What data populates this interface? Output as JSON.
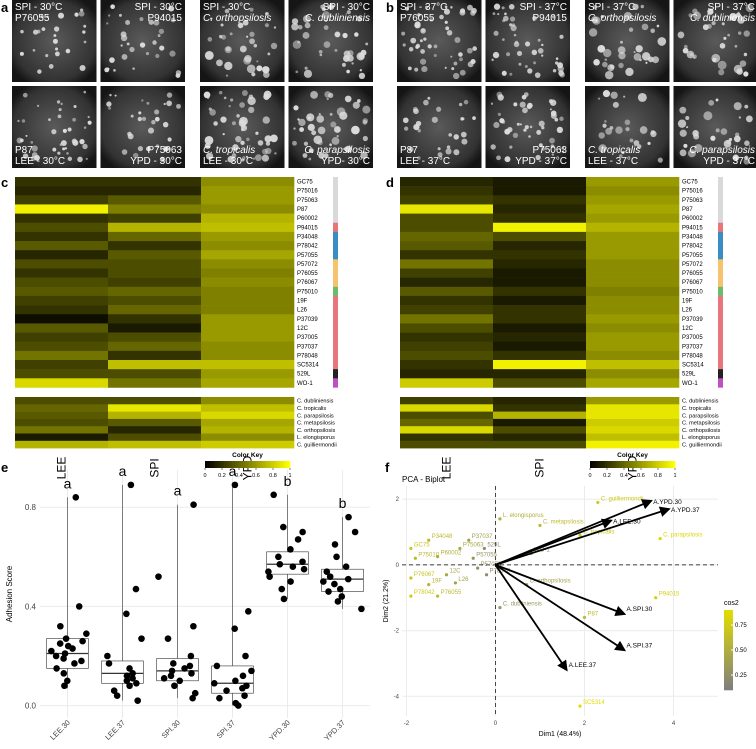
{
  "photo_panels": [
    {
      "panel": "a",
      "plates": [
        {
          "italic": false,
          "quadrants": [
            [
              "SPI - 30°C",
              "P76055"
            ],
            [
              "SPI - 30°C",
              "P94015"
            ],
            [
              "P87",
              "LEE - 30°C"
            ],
            [
              "P75063",
              "YPD - 30°C"
            ]
          ]
        },
        {
          "italic": true,
          "quadrants": [
            [
              "SPI - 30°C",
              "C. orthopsilosis"
            ],
            [
              "SPI - 30°C",
              "C. dubliniensis"
            ],
            [
              "C. tropicalis",
              "LEE - 30°C"
            ],
            [
              "C. parapsilosis",
              "YPD- 30°C"
            ]
          ]
        }
      ]
    },
    {
      "panel": "b",
      "plates": [
        {
          "italic": false,
          "quadrants": [
            [
              "SPI - 37°C",
              "P76055"
            ],
            [
              "SPI - 37°C",
              "P94015"
            ],
            [
              "P87",
              "LEE - 37°C"
            ],
            [
              "P75063",
              "YPD - 37°C"
            ]
          ]
        },
        {
          "italic": true,
          "quadrants": [
            [
              "SPI - 37°C",
              "C. orthopsilosis"
            ],
            [
              "SPI - 37°C",
              "C. dubliniensis"
            ],
            [
              "C. tropicalis",
              "LEE - 37°C"
            ],
            [
              "C. parapsilosis",
              "YPD - 37°C"
            ]
          ]
        }
      ]
    }
  ],
  "chart_data": [
    {
      "type": "heatmap",
      "panel": "c",
      "columns": [
        "LEE",
        "SPI",
        "YPD"
      ],
      "rows": [
        "GC75",
        "P75016",
        "P75063",
        "P87",
        "P60002",
        "P94015",
        "P34048",
        "P78042",
        "P57055",
        "P57072",
        "P76055",
        "P76067",
        "P75010",
        "19F",
        "L26",
        "P37039",
        "12C",
        "P37005",
        "P37037",
        "P78048",
        "SC5314",
        "529L",
        "WO-1"
      ],
      "row_colors": [
        "#d9d9d9",
        "#d9d9d9",
        "#d9d9d9",
        "#d9d9d9",
        "#d9d9d9",
        "#e8747c",
        "#3a8dc4",
        "#3a8dc4",
        "#3a8dc4",
        "#f4c36b",
        "#f4c36b",
        "#f4c36b",
        "#6dbb6d",
        "#e8747c",
        "#e8747c",
        "#e8747c",
        "#e8747c",
        "#e8747c",
        "#e8747c",
        "#e8747c",
        "#e8747c",
        "#222222",
        "#c04fc0"
      ],
      "values": [
        [
          0.2,
          0.2,
          0.55
        ],
        [
          0.15,
          0.15,
          0.6
        ],
        [
          0.25,
          0.35,
          0.6
        ],
        [
          0.95,
          0.5,
          0.55
        ],
        [
          0.2,
          0.25,
          0.7
        ],
        [
          0.3,
          0.7,
          0.75
        ],
        [
          0.2,
          0.4,
          0.6
        ],
        [
          0.35,
          0.2,
          0.55
        ],
        [
          0.15,
          0.35,
          0.65
        ],
        [
          0.3,
          0.3,
          0.55
        ],
        [
          0.2,
          0.3,
          0.5
        ],
        [
          0.3,
          0.25,
          0.55
        ],
        [
          0.35,
          0.4,
          0.5
        ],
        [
          0.25,
          0.3,
          0.5
        ],
        [
          0.2,
          0.4,
          0.5
        ],
        [
          0.05,
          0.2,
          0.6
        ],
        [
          0.35,
          0.1,
          0.6
        ],
        [
          0.25,
          0.3,
          0.6
        ],
        [
          0.3,
          0.4,
          0.55
        ],
        [
          0.45,
          0.2,
          0.55
        ],
        [
          0.25,
          0.75,
          0.75
        ],
        [
          0.3,
          0.3,
          0.6
        ],
        [
          0.85,
          0.45,
          0.65
        ]
      ],
      "rows2": [
        "C. dubliniensis",
        "C. tropicalis",
        "C. parapsilosis",
        "C. metapsilosis",
        "C. orthopsilosis",
        "L. elongisporus",
        "C. guilliermondii"
      ],
      "values2": [
        [
          0.3,
          0.3,
          0.55
        ],
        [
          0.4,
          0.9,
          0.75
        ],
        [
          0.35,
          0.7,
          0.85
        ],
        [
          0.3,
          0.35,
          0.65
        ],
        [
          0.45,
          0.15,
          0.7
        ],
        [
          0.1,
          0.3,
          0.55
        ],
        [
          0.7,
          0.75,
          0.8
        ]
      ],
      "colormap": [
        "#000000",
        "#ffff00"
      ],
      "colorbar_title": "Color Key",
      "colorbar_ticks": [
        0,
        0.2,
        0.4,
        0.6,
        0.8,
        1
      ]
    },
    {
      "type": "heatmap",
      "panel": "d",
      "columns": [
        "LEE",
        "SPI",
        "YPD"
      ],
      "rows": [
        "GC75",
        "P75016",
        "P75063",
        "P87",
        "P60002",
        "P94015",
        "P34048",
        "P78042",
        "P57055",
        "P57072",
        "P76055",
        "P76067",
        "P75010",
        "19F",
        "L26",
        "P37039",
        "12C",
        "P37005",
        "P37037",
        "P78048",
        "SC5314",
        "529L",
        "WO-1"
      ],
      "row_colors": [
        "#d9d9d9",
        "#d9d9d9",
        "#d9d9d9",
        "#d9d9d9",
        "#d9d9d9",
        "#e8747c",
        "#3a8dc4",
        "#3a8dc4",
        "#3a8dc4",
        "#f4c36b",
        "#f4c36b",
        "#f4c36b",
        "#6dbb6d",
        "#e8747c",
        "#e8747c",
        "#e8747c",
        "#e8747c",
        "#e8747c",
        "#e8747c",
        "#e8747c",
        "#e8747c",
        "#222222",
        "#c04fc0"
      ],
      "values": [
        [
          0.15,
          0.1,
          0.6
        ],
        [
          0.2,
          0.1,
          0.55
        ],
        [
          0.25,
          0.2,
          0.6
        ],
        [
          0.9,
          0.15,
          0.65
        ],
        [
          0.3,
          0.2,
          0.6
        ],
        [
          0.3,
          0.95,
          0.7
        ],
        [
          0.4,
          0.3,
          0.6
        ],
        [
          0.35,
          0.15,
          0.6
        ],
        [
          0.2,
          0.2,
          0.6
        ],
        [
          0.45,
          0.15,
          0.55
        ],
        [
          0.25,
          0.1,
          0.55
        ],
        [
          0.15,
          0.1,
          0.55
        ],
        [
          0.35,
          0.2,
          0.5
        ],
        [
          0.2,
          0.1,
          0.55
        ],
        [
          0.25,
          0.2,
          0.55
        ],
        [
          0.45,
          0.2,
          0.6
        ],
        [
          0.3,
          0.1,
          0.55
        ],
        [
          0.2,
          0.15,
          0.6
        ],
        [
          0.25,
          0.1,
          0.6
        ],
        [
          0.3,
          0.2,
          0.55
        ],
        [
          0.2,
          0.95,
          0.75
        ],
        [
          0.15,
          0.15,
          0.55
        ],
        [
          0.8,
          0.3,
          0.65
        ]
      ],
      "rows2": [
        "C. dubliniensis",
        "C. tropicalis",
        "C. parapsilosis",
        "C. metapsilosis",
        "C. orthopsilosis",
        "L. elongisporus",
        "C. guilliermondii"
      ],
      "values2": [
        [
          0.25,
          0.15,
          0.6
        ],
        [
          0.85,
          0.2,
          0.9
        ],
        [
          0.3,
          0.7,
          0.9
        ],
        [
          0.4,
          0.1,
          0.8
        ],
        [
          0.85,
          0.3,
          0.85
        ],
        [
          0.2,
          0.15,
          0.75
        ],
        [
          0.3,
          0.3,
          0.95
        ]
      ],
      "colormap": [
        "#000000",
        "#ffff00"
      ],
      "colorbar_title": "Color Key",
      "colorbar_ticks": [
        0,
        0.2,
        0.4,
        0.6,
        0.8,
        1
      ]
    },
    {
      "type": "box",
      "panel": "e",
      "ylabel": "Adhesion Score",
      "categories": [
        "LEE.30",
        "LEE.37",
        "SPI.30",
        "SPI.37",
        "YPD.30",
        "YPD.37"
      ],
      "letters": [
        "a",
        "a",
        "a",
        "a",
        "b",
        "b"
      ],
      "q1": [
        0.15,
        0.09,
        0.1,
        0.05,
        0.53,
        0.46
      ],
      "median": [
        0.21,
        0.13,
        0.14,
        0.09,
        0.57,
        0.51
      ],
      "q3": [
        0.27,
        0.18,
        0.19,
        0.16,
        0.62,
        0.55
      ],
      "whisker_low": [
        0.07,
        0.02,
        0.03,
        0.0,
        0.43,
        0.39
      ],
      "whisker_high": [
        0.84,
        0.89,
        0.81,
        0.89,
        0.85,
        0.76
      ],
      "points": [
        [
          0.84,
          0.4,
          0.32,
          0.29,
          0.27,
          0.25,
          0.23,
          0.22,
          0.21,
          0.2,
          0.19,
          0.17,
          0.15,
          0.13,
          0.1,
          0.08,
          0.26,
          0.24,
          0.18
        ],
        [
          0.89,
          0.47,
          0.37,
          0.27,
          0.2,
          0.17,
          0.15,
          0.13,
          0.12,
          0.11,
          0.1,
          0.09,
          0.08,
          0.06,
          0.04,
          0.02
        ],
        [
          0.81,
          0.52,
          0.32,
          0.27,
          0.2,
          0.17,
          0.16,
          0.15,
          0.14,
          0.13,
          0.12,
          0.11,
          0.1,
          0.08,
          0.05,
          0.03
        ],
        [
          0.89,
          0.38,
          0.31,
          0.2,
          0.16,
          0.14,
          0.12,
          0.1,
          0.09,
          0.08,
          0.07,
          0.06,
          0.04,
          0.03,
          0.01,
          0.0
        ],
        [
          0.85,
          0.72,
          0.7,
          0.67,
          0.63,
          0.6,
          0.58,
          0.57,
          0.56,
          0.55,
          0.54,
          0.52,
          0.5,
          0.47,
          0.43
        ],
        [
          0.76,
          0.7,
          0.65,
          0.6,
          0.56,
          0.54,
          0.52,
          0.51,
          0.5,
          0.49,
          0.47,
          0.46,
          0.44,
          0.42,
          0.39
        ]
      ],
      "ylim": [
        -0.05,
        0.95
      ],
      "yticks": [
        {
          "value": 0,
          "label": "0.0"
        },
        {
          "value": 0.4,
          "label": "0.4"
        },
        {
          "value": 0.8,
          "label": "0.8"
        }
      ],
      "grid": true
    },
    {
      "type": "biplot",
      "panel": "f",
      "title": "PCA - Biplot",
      "xlabel": "Dim1 (48.4%)",
      "ylabel": "Dim2 (21.2%)",
      "xlim": [
        -2.1,
        5.0
      ],
      "ylim": [
        -4.6,
        2.4
      ],
      "xticks": [
        -2,
        0,
        2,
        4
      ],
      "yticks": [
        -4,
        -2,
        0,
        2
      ],
      "point_labels": [
        "C. guilliermondii",
        "L. elongisporus",
        "C. metapsilosis",
        "C. tropicalis",
        "C. parapsilosis",
        "WO-1",
        "529L",
        "P37037",
        "P34048",
        "P75063",
        "GC75",
        "P75010",
        "P60002",
        "P57055",
        "P57072",
        "P78048",
        "12C",
        "L26",
        "19F",
        "P76067",
        "P78042",
        "P76055",
        "C. dubliniensis",
        "C. orthopsilosis",
        "P94015",
        "P87",
        "SC5314"
      ],
      "x": [
        2.3,
        0.1,
        1.0,
        1.9,
        3.7,
        0.8,
        -0.25,
        -0.6,
        -1.5,
        -0.8,
        -1.9,
        -1.8,
        -1.3,
        -0.5,
        -0.4,
        -0.2,
        -1.1,
        -0.9,
        -1.5,
        -1.9,
        -1.9,
        -1.3,
        0.1,
        0.7,
        3.6,
        2.0,
        1.9
      ],
      "y": [
        1.9,
        1.4,
        1.2,
        0.9,
        0.8,
        0.35,
        0.5,
        0.75,
        0.75,
        0.5,
        0.5,
        0.2,
        0.25,
        0.2,
        -0.1,
        -0.3,
        -0.3,
        -0.55,
        -0.6,
        -0.4,
        -0.95,
        -0.95,
        -1.3,
        -0.6,
        -1.0,
        -1.6,
        -4.3
      ],
      "cos2": [
        0.75,
        0.5,
        0.6,
        0.7,
        0.85,
        0.3,
        0.2,
        0.4,
        0.6,
        0.45,
        0.7,
        0.6,
        0.5,
        0.3,
        0.25,
        0.2,
        0.45,
        0.4,
        0.55,
        0.7,
        0.75,
        0.6,
        0.3,
        0.4,
        0.8,
        0.6,
        0.9
      ],
      "colormap": [
        "#7f7f7f",
        "#e0dc00"
      ],
      "cos2_lim": [
        0.1,
        0.9
      ],
      "legend_title": "cos2",
      "legend_ticks": [
        0.25,
        {
          "value": 0.5,
          "label": "0.50"
        },
        0.75
      ],
      "arrow_color": "#000000",
      "arrow_labels": [
        "A.YPD.30",
        "A.YPD.37",
        "A.LEE.30",
        "A.SPI.30",
        "A.SPI.37",
        "A.LEE.37"
      ],
      "arrow_x": [
        3.5,
        3.9,
        2.6,
        2.9,
        2.9,
        1.6
      ],
      "arrow_y": [
        1.95,
        1.7,
        1.35,
        -1.5,
        -2.6,
        -3.2
      ]
    }
  ]
}
